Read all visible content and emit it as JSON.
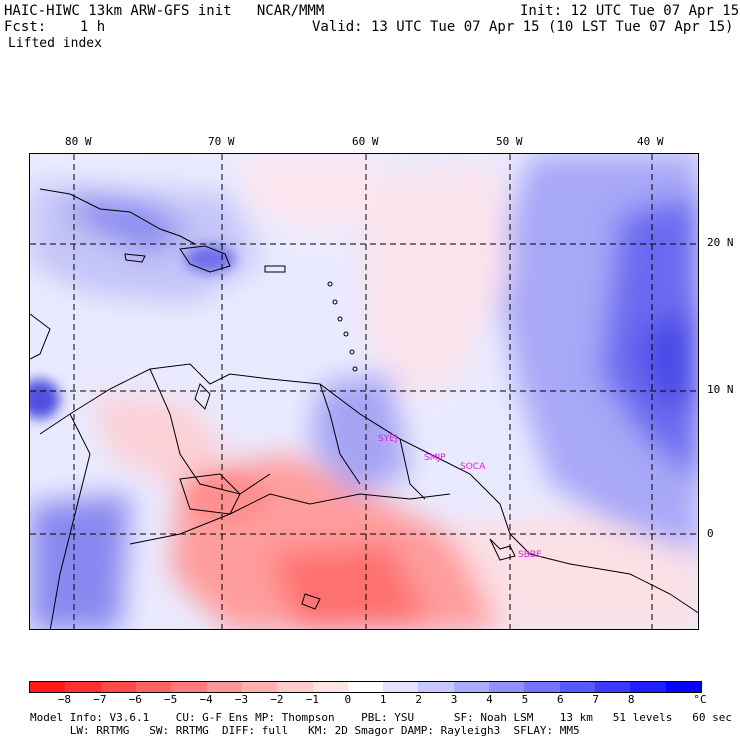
{
  "header": {
    "model": "HAIC-HIWC 13km ARW-GFS init   NCAR/MMM",
    "fcst": "Fcst:    1 h",
    "field": "Lifted index",
    "init": "Init: 12 UTC Tue 07 Apr 15",
    "valid": "Valid: 13 UTC Tue 07 Apr 15 (10 LST Tue 07 Apr 15)"
  },
  "map": {
    "lon_labels": [
      "80 W",
      "70 W",
      "60 W",
      "50 W",
      "40 W"
    ],
    "lat_labels": [
      "20 N",
      "10 N",
      "0"
    ],
    "stations": [
      "SYEJ",
      "SMJP",
      "SOCA",
      "SBBE"
    ]
  },
  "colorbar": {
    "unit": "°C",
    "ticks": [
      "−8",
      "−7",
      "−6",
      "−5",
      "−4",
      "−3",
      "−2",
      "−1",
      "0",
      "1",
      "2",
      "3",
      "4",
      "5",
      "6",
      "7",
      "8"
    ],
    "colors": [
      "#ff1a1a",
      "#ff3030",
      "#ff4a4a",
      "#ff6262",
      "#ff7c7c",
      "#ff9797",
      "#ffb0b0",
      "#ffcaca",
      "#ffe4e4",
      "#ffffff",
      "#e4e4ff",
      "#c8c8ff",
      "#acacff",
      "#9090ff",
      "#7474ff",
      "#5858ff",
      "#3c3cff",
      "#2020ff",
      "#0404ff"
    ]
  },
  "footer": {
    "line1": "Model Info: V3.6.1    CU: G-F Ens MP: Thompson    PBL: YSU      SF: Noah LSM    13 km   51 levels   60 sec",
    "line2": "      LW: RRTMG   SW: RRTMG  DIFF: full   KM: 2D Smagor DAMP: Rayleigh3  SFLAY: MM5"
  }
}
